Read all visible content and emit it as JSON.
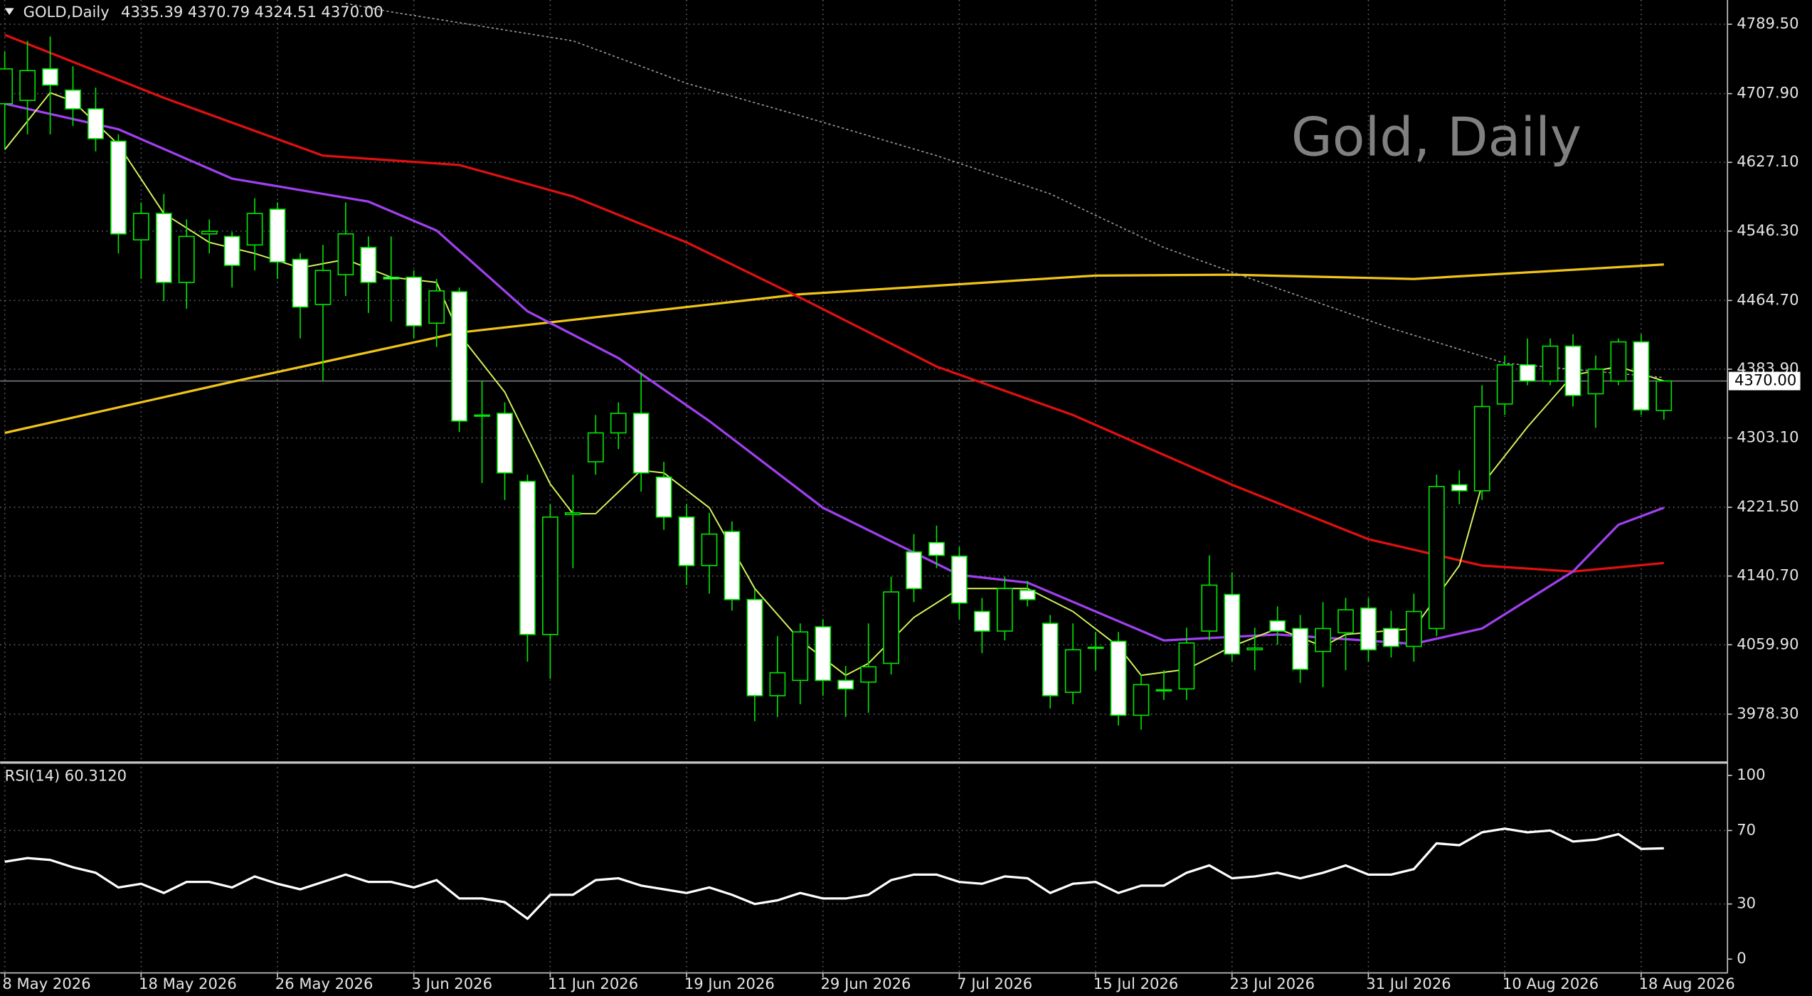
{
  "chart_data": [
    {
      "type": "candlestick",
      "title": "GOLD,Daily",
      "ohlc_labels": [
        "4335.39",
        "4370.79",
        "4324.51",
        "4370.00"
      ],
      "watermark": "Gold, Daily",
      "categories": [
        "8 May 2026",
        null,
        null,
        null,
        null,
        null,
        "18 May 2026",
        null,
        null,
        null,
        null,
        null,
        "26 May 2026",
        null,
        null,
        null,
        null,
        null,
        "3 Jun 2026",
        null,
        null,
        null,
        null,
        null,
        "11 Jun 2026",
        null,
        null,
        null,
        null,
        null,
        "19 Jun 2026",
        null,
        null,
        null,
        null,
        null,
        "29 Jun 2026",
        null,
        null,
        null,
        null,
        null,
        "7 Jul 2026",
        null,
        null,
        null,
        null,
        null,
        "15 Jul 2026",
        null,
        null,
        null,
        null,
        null,
        "23 Jul 2026",
        null,
        null,
        null,
        null,
        null,
        "31 Jul 2026",
        null,
        null,
        null,
        null,
        null,
        "10 Aug 2026",
        null,
        null,
        null,
        null,
        null,
        "18 Aug 2026",
        null
      ],
      "open": [
        4696,
        4700,
        4737,
        4712,
        4690,
        4652,
        4536,
        4567,
        4486,
        4543,
        4540,
        4530,
        4572,
        4513,
        4460,
        4495,
        4527,
        4492,
        4492,
        4438,
        4475,
        4330,
        4332,
        4252,
        4072,
        4213,
        4275,
        4309,
        4332,
        4257,
        4210,
        4153,
        4193,
        4113,
        4000,
        4018,
        4081,
        4018,
        4016,
        4038,
        4169,
        4180,
        4164,
        4099,
        4076,
        4124,
        4085,
        4004,
        4056,
        4064,
        3977,
        4006,
        4008,
        4076,
        4119,
        4054,
        4088,
        4079,
        4052,
        4074,
        4103,
        4079,
        4058,
        4079,
        4248,
        4241,
        4343,
        4389,
        4370,
        4411,
        4355,
        4370,
        4416,
        4335.39
      ],
      "high": [
        4757,
        4770,
        4775,
        4740,
        4715,
        4660,
        4580,
        4590,
        4560,
        4560,
        4545,
        4585,
        4580,
        4520,
        4530,
        4580,
        4540,
        4540,
        4500,
        4490,
        4480,
        4370,
        4345,
        4260,
        4225,
        4260,
        4330,
        4345,
        4380,
        4275,
        4225,
        4215,
        4205,
        4125,
        4070,
        4085,
        4090,
        4035,
        4085,
        4140,
        4190,
        4200,
        4175,
        4115,
        4140,
        4135,
        4095,
        4085,
        4075,
        4075,
        4025,
        4030,
        4080,
        4165,
        4145,
        4080,
        4105,
        4095,
        4110,
        4115,
        4115,
        4100,
        4120,
        4260,
        4265,
        4365,
        4400,
        4420,
        4420,
        4425,
        4400,
        4420,
        4425,
        4370.79
      ],
      "low": [
        4642,
        4660,
        4660,
        4670,
        4640,
        4520,
        4490,
        4464,
        4455,
        4520,
        4480,
        4500,
        4490,
        4420,
        4370,
        4470,
        4450,
        4440,
        4420,
        4410,
        4310,
        4250,
        4230,
        4040,
        4020,
        4150,
        4260,
        4290,
        4240,
        4195,
        4130,
        4120,
        4100,
        3970,
        3975,
        3990,
        4000,
        3975,
        3980,
        4025,
        4110,
        4150,
        4090,
        4050,
        4065,
        4105,
        3985,
        3990,
        4030,
        3965,
        3960,
        3995,
        3995,
        4065,
        4040,
        4030,
        4060,
        4015,
        4010,
        4030,
        4040,
        4045,
        4040,
        4070,
        4225,
        4230,
        4330,
        4365,
        4365,
        4340,
        4315,
        4365,
        4330,
        4324.51
      ],
      "close": [
        4737,
        4735,
        4718,
        4690,
        4655,
        4543,
        4567,
        4486,
        4540,
        4546,
        4506,
        4567,
        4510,
        4457,
        4500,
        4543,
        4486,
        4490,
        4435,
        4476,
        4323,
        4330,
        4262,
        4072,
        4210,
        4215,
        4309,
        4332,
        4262,
        4210,
        4153,
        4190,
        4113,
        4000,
        4027,
        4075,
        4018,
        4008,
        4034,
        4122,
        4126,
        4165,
        4109,
        4076,
        4126,
        4113,
        4000,
        4054,
        4057,
        3977,
        4013,
        4007,
        4062,
        4130,
        4049,
        4056,
        4076,
        4031,
        4079,
        4101,
        4054,
        4058,
        4099,
        4246,
        4241,
        4340,
        4389,
        4370,
        4411,
        4353,
        4384,
        4416,
        4336,
        4370
      ],
      "up_color": "#000000",
      "down_color": "#ffffff",
      "wick_color": "#00e600",
      "series": [
        {
          "color": "#f0c419",
          "x": [
            0,
            10,
            20,
            35,
            48,
            54,
            62,
            73
          ],
          "values": [
            4309,
            4369,
            4427,
            4472,
            4494,
            4495,
            4490,
            4507
          ]
        },
        {
          "color": "#e01010",
          "x": [
            0,
            7,
            14,
            20,
            25,
            30,
            35,
            41,
            47,
            54,
            60,
            65,
            69,
            73
          ],
          "values": [
            4777,
            4703,
            4635,
            4624,
            4587,
            4533,
            4468,
            4387,
            4330,
            4248,
            4184,
            4153,
            4146,
            4156
          ]
        },
        {
          "color": "#a040f0",
          "x": [
            0,
            5,
            10,
            16,
            19,
            23,
            27,
            31,
            36,
            42,
            45,
            51,
            56,
            62,
            65,
            69,
            71,
            73
          ],
          "values": [
            4696,
            4666,
            4608,
            4581,
            4547,
            4452,
            4397,
            4323,
            4221,
            4142,
            4133,
            4065,
            4072,
            4061,
            4079,
            4146,
            4201,
            4221
          ]
        },
        {
          "color": "#d4f55a",
          "x": [
            0,
            2,
            3,
            5,
            7,
            9,
            11,
            13,
            15,
            17,
            19,
            20,
            22,
            24,
            25,
            26,
            28,
            29,
            31,
            33,
            35,
            37,
            38,
            40,
            42,
            45,
            47,
            49,
            50,
            52,
            54,
            56,
            58,
            59,
            62,
            64,
            65,
            67,
            69,
            71,
            73
          ],
          "values": [
            4642,
            4709,
            4699,
            4648,
            4567,
            4533,
            4520,
            4503,
            4513,
            4492,
            4486,
            4425,
            4357,
            4249,
            4214,
            4214,
            4265,
            4262,
            4221,
            4126,
            4065,
            4024,
            4038,
            4092,
            4126,
            4126,
            4099,
            4058,
            4024,
            4031,
            4058,
            4079,
            4058,
            4072,
            4079,
            4153,
            4248,
            4316,
            4377,
            4387,
            4370
          ]
        },
        {
          "color": "#9a9a9a",
          "dashed": true,
          "x": [
            15,
            17,
            25,
            30,
            35,
            41,
            46,
            51,
            56,
            61,
            66,
            73
          ],
          "values": [
            4814,
            4804,
            4770,
            4720,
            4682,
            4635,
            4590,
            4527,
            4479,
            4432,
            4391,
            4374
          ]
        }
      ],
      "ylim": [
        3922.7,
        4818
      ],
      "yticks": [
        {
          "value": 4789.5,
          "label": "4789.50"
        },
        {
          "value": 4707.9,
          "label": "4707.90"
        },
        {
          "value": 4627.1,
          "label": "4627.10"
        },
        {
          "value": 4546.3,
          "label": "4546.30"
        },
        {
          "value": 4464.7,
          "label": "4464.70"
        },
        {
          "value": 4383.9,
          "label": "4383.90"
        },
        {
          "value": 4303.1,
          "label": "4303.10"
        },
        {
          "value": 4221.5,
          "label": "4221.50"
        },
        {
          "value": 4140.7,
          "label": "4140.70"
        },
        {
          "value": 4059.9,
          "label": "4059.90"
        },
        {
          "value": 3978.3,
          "label": "3978.30"
        }
      ],
      "price_line": {
        "value": 4370,
        "label": "4370.00"
      },
      "grid": true
    },
    {
      "type": "line",
      "title": "RSI(14)",
      "last_label": "60.3120",
      "color": "#ffffff",
      "values": [
        53,
        55,
        54,
        50,
        47,
        39,
        41,
        36,
        42,
        42,
        39,
        45,
        41,
        38,
        42,
        46,
        42,
        42,
        39,
        43,
        33,
        33,
        31,
        22,
        35,
        35,
        43,
        44,
        40,
        38,
        36,
        39,
        35,
        30,
        32,
        36,
        33,
        33,
        35,
        43,
        46,
        46,
        42,
        41,
        45,
        44,
        36,
        41,
        42,
        36,
        40,
        40,
        47,
        51,
        44,
        45,
        47,
        44,
        47,
        51,
        46,
        46,
        49,
        63,
        62,
        69,
        71,
        69,
        70,
        64,
        65,
        68,
        60,
        60.312
      ],
      "ylim": [
        -7.5,
        105.7
      ],
      "yticks": [
        0,
        30,
        70,
        100
      ],
      "grid": true
    }
  ]
}
